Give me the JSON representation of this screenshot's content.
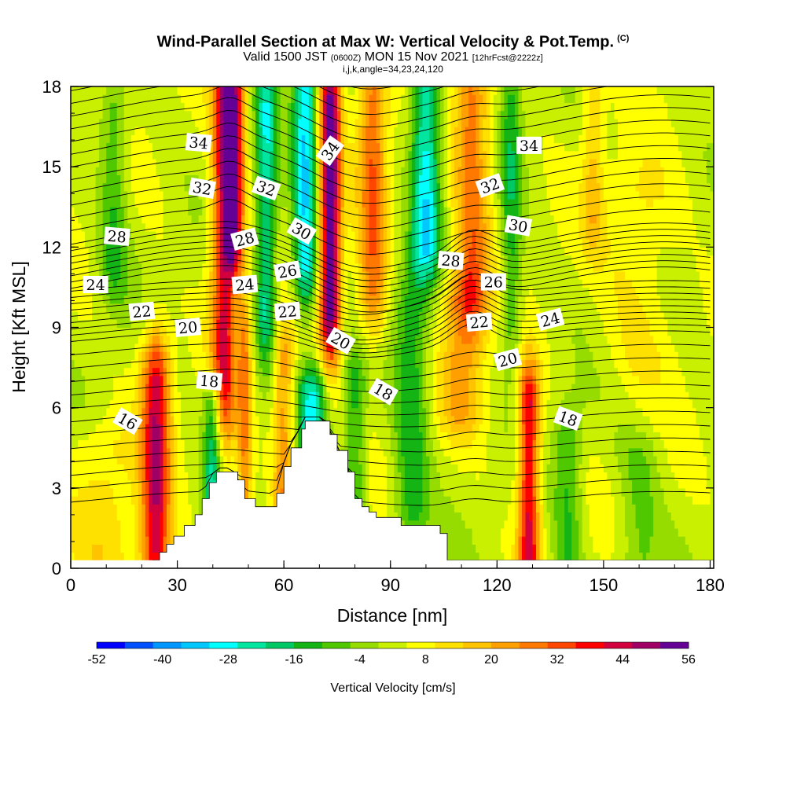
{
  "title": {
    "main": "Wind-Parallel Section at Max W: Vertical Velocity & Pot.Temp.",
    "main_sup": "(C)",
    "valid_prefix": "Valid 1500 JST",
    "valid_utc": "(0600Z)",
    "valid_date": "MON 15 Nov 2021",
    "forecast": "[12hrFcst@2222z]",
    "indices": "i,j,k,angle=34,23,24,120"
  },
  "colors": {
    "ramp": [
      "#0000ff",
      "#0050ff",
      "#0096ff",
      "#00c8ff",
      "#00ffff",
      "#00e6a0",
      "#00c864",
      "#14b414",
      "#50c800",
      "#96dc00",
      "#c8f000",
      "#ffff00",
      "#ffe100",
      "#ffc300",
      "#ffa000",
      "#ff7800",
      "#ff4600",
      "#ff0000",
      "#d2003c",
      "#a00064",
      "#640096"
    ],
    "contour_line": "#000000",
    "terrain": "#ffffff"
  },
  "chart_data": {
    "type": "heatmap",
    "xlabel": "Distance [nm]",
    "ylabel": "Height [Kft MSL]",
    "xlim": [
      0,
      181
    ],
    "ylim": [
      0,
      18
    ],
    "x_ticks": [
      "0",
      "30",
      "60",
      "90",
      "120",
      "150",
      "180"
    ],
    "y_ticks": [
      "0",
      "3",
      "6",
      "9",
      "12",
      "15",
      "18"
    ],
    "colorbar": {
      "title": "Vertical Velocity [cm/s]",
      "min": -52,
      "max": 56,
      "tick_labels": [
        "-52",
        "-40",
        "-28",
        "-16",
        "-4",
        "8",
        "20",
        "32",
        "44",
        "56"
      ]
    },
    "w_columns": [
      {
        "x": 24,
        "amp": 40,
        "width": 4,
        "y0": 0,
        "y1": 7.5
      },
      {
        "x": 43,
        "amp": 36,
        "width": 3.5,
        "y0": 6,
        "y1": 18
      },
      {
        "x": 46,
        "amp": 38,
        "width": 3,
        "y0": 12,
        "y1": 18
      },
      {
        "x": 49,
        "amp": 22,
        "width": 2,
        "y0": 1,
        "y1": 9
      },
      {
        "x": 60,
        "amp": 22,
        "width": 3,
        "y0": 2,
        "y1": 8
      },
      {
        "x": 73,
        "amp": 52,
        "width": 3,
        "y0": 9,
        "y1": 18
      },
      {
        "x": 85,
        "amp": 26,
        "width": 4,
        "y0": 10,
        "y1": 18
      },
      {
        "x": 113,
        "amp": 26,
        "width": 5,
        "y0": 10,
        "y1": 18
      },
      {
        "x": 110,
        "amp": 16,
        "width": 6,
        "y0": 6,
        "y1": 10
      },
      {
        "x": 129,
        "amp": 40,
        "width": 3,
        "y0": 0,
        "y1": 6.5
      },
      {
        "x": 147,
        "amp": 12,
        "width": 3,
        "y0": 13,
        "y1": 18
      },
      {
        "x": 10,
        "amp": 8,
        "width": 10,
        "y0": 0,
        "y1": 4.5
      },
      {
        "x": 40,
        "amp": -26,
        "width": 2.5,
        "y0": 2,
        "y1": 6
      },
      {
        "x": 55,
        "amp": -26,
        "width": 3,
        "y0": 9,
        "y1": 18
      },
      {
        "x": 66,
        "amp": -34,
        "width": 3.5,
        "y0": 11,
        "y1": 18
      },
      {
        "x": 68,
        "amp": -30,
        "width": 4,
        "y0": 2.5,
        "y1": 6.5
      },
      {
        "x": 80,
        "amp": -16,
        "width": 3,
        "y0": 2,
        "y1": 7
      },
      {
        "x": 100,
        "amp": -32,
        "width": 4,
        "y0": 12,
        "y1": 18
      },
      {
        "x": 96,
        "amp": -18,
        "width": 5,
        "y0": 2,
        "y1": 10
      },
      {
        "x": 124,
        "amp": -16,
        "width": 3,
        "y0": 9,
        "y1": 18
      },
      {
        "x": 140,
        "amp": -14,
        "width": 4,
        "y0": 0,
        "y1": 5
      },
      {
        "x": 160,
        "amp": -10,
        "width": 6,
        "y0": 0,
        "y1": 4
      },
      {
        "x": 12,
        "amp": -14,
        "width": 4,
        "y0": 11,
        "y1": 17
      },
      {
        "x": 160,
        "amp": 8,
        "width": 10,
        "y0": 8,
        "y1": 14
      }
    ],
    "terrain_profile": [
      [
        0,
        0
      ],
      [
        21,
        0
      ],
      [
        23,
        0.3
      ],
      [
        25,
        0.6
      ],
      [
        27,
        0.9
      ],
      [
        29,
        1.2
      ],
      [
        32,
        1.6
      ],
      [
        35,
        2.0
      ],
      [
        37,
        2.6
      ],
      [
        39,
        3.2
      ],
      [
        41,
        3.6
      ],
      [
        45,
        3.6
      ],
      [
        47,
        3.3
      ],
      [
        49,
        2.6
      ],
      [
        52,
        2.3
      ],
      [
        56,
        2.3
      ],
      [
        58,
        2.8
      ],
      [
        60,
        3.8
      ],
      [
        62,
        4.5
      ],
      [
        65,
        5.2
      ],
      [
        66,
        5.5
      ],
      [
        71,
        5.5
      ],
      [
        73,
        5.0
      ],
      [
        75,
        4.4
      ],
      [
        78,
        3.6
      ],
      [
        80,
        2.6
      ],
      [
        82,
        2.3
      ],
      [
        84,
        2.1
      ],
      [
        86,
        1.9
      ],
      [
        90,
        1.9
      ],
      [
        93,
        1.6
      ],
      [
        102,
        1.6
      ],
      [
        104,
        1.3
      ],
      [
        106,
        0.3
      ],
      [
        181,
        0.3
      ]
    ],
    "contour_labels": [
      {
        "text": "16",
        "x": 16,
        "y": 5.5,
        "angle": 30
      },
      {
        "text": "18",
        "x": 39,
        "y": 7.0,
        "angle": 5
      },
      {
        "text": "20",
        "x": 33,
        "y": 9.0,
        "angle": -5
      },
      {
        "text": "22",
        "x": 20,
        "y": 9.6,
        "angle": -5
      },
      {
        "text": "24",
        "x": 7,
        "y": 10.6,
        "angle": 0
      },
      {
        "text": "28",
        "x": 13,
        "y": 12.4,
        "angle": 5
      },
      {
        "text": "34",
        "x": 36,
        "y": 15.9,
        "angle": 5
      },
      {
        "text": "32",
        "x": 37,
        "y": 14.2,
        "angle": 10
      },
      {
        "text": "28",
        "x": 49,
        "y": 12.3,
        "angle": -15
      },
      {
        "text": "24",
        "x": 49,
        "y": 10.6,
        "angle": -5
      },
      {
        "text": "32",
        "x": 55,
        "y": 14.2,
        "angle": 20
      },
      {
        "text": "30",
        "x": 65,
        "y": 12.6,
        "angle": 30
      },
      {
        "text": "26",
        "x": 61,
        "y": 11.1,
        "angle": -10
      },
      {
        "text": "22",
        "x": 61,
        "y": 9.6,
        "angle": -5
      },
      {
        "text": "34",
        "x": 73,
        "y": 15.6,
        "angle": -55
      },
      {
        "text": "20",
        "x": 76,
        "y": 8.5,
        "angle": 30
      },
      {
        "text": "18",
        "x": 88,
        "y": 6.6,
        "angle": 30
      },
      {
        "text": "28",
        "x": 107,
        "y": 11.5,
        "angle": 5
      },
      {
        "text": "32",
        "x": 118,
        "y": 14.3,
        "angle": -20
      },
      {
        "text": "30",
        "x": 126,
        "y": 12.8,
        "angle": 10
      },
      {
        "text": "26",
        "x": 119,
        "y": 10.7,
        "angle": 0
      },
      {
        "text": "22",
        "x": 115,
        "y": 9.2,
        "angle": -5
      },
      {
        "text": "24",
        "x": 135,
        "y": 9.3,
        "angle": -15
      },
      {
        "text": "20",
        "x": 123,
        "y": 7.8,
        "angle": -15
      },
      {
        "text": "34",
        "x": 129,
        "y": 15.8,
        "angle": 0
      },
      {
        "text": "18",
        "x": 140,
        "y": 5.6,
        "angle": 20
      }
    ]
  }
}
